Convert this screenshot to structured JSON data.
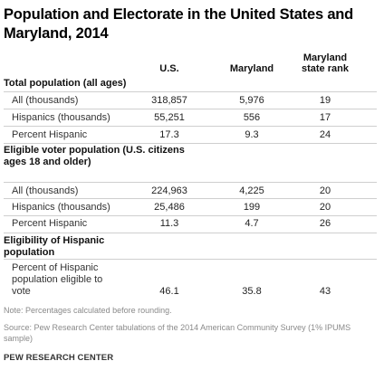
{
  "title": "Population and Electorate in the United States and Maryland, 2014",
  "columns": {
    "us": "U.S.",
    "md": "Maryland",
    "rank": "Maryland state rank"
  },
  "sections": [
    {
      "heading": "Total population (all ages)",
      "rows": [
        {
          "label": "All (thousands)",
          "us": "318,857",
          "md": "5,976",
          "rank": "19"
        },
        {
          "label": "Hispanics (thousands)",
          "us": "55,251",
          "md": "556",
          "rank": "17"
        },
        {
          "label": "Percent Hispanic",
          "us": "17.3",
          "md": "9.3",
          "rank": "24"
        }
      ]
    },
    {
      "heading": "Eligible voter population (U.S. citizens ages 18 and older)",
      "rows": [
        {
          "label": "All (thousands)",
          "us": "224,963",
          "md": "4,225",
          "rank": "20"
        },
        {
          "label": "Hispanics (thousands)",
          "us": "25,486",
          "md": "199",
          "rank": "20"
        },
        {
          "label": "Percent Hispanic",
          "us": "11.3",
          "md": "4.7",
          "rank": "26"
        }
      ]
    },
    {
      "heading": "Eligibility of Hispanic population",
      "rows": [
        {
          "label": "Percent of Hispanic population eligible to vote",
          "us": "46.1",
          "md": "35.8",
          "rank": "43"
        }
      ]
    }
  ],
  "note": "Note: Percentages calculated before rounding.",
  "source": "Source: Pew Research Center tabulations of the 2014 American Community Survey (1% IPUMS sample)",
  "brand": "PEW RESEARCH CENTER"
}
